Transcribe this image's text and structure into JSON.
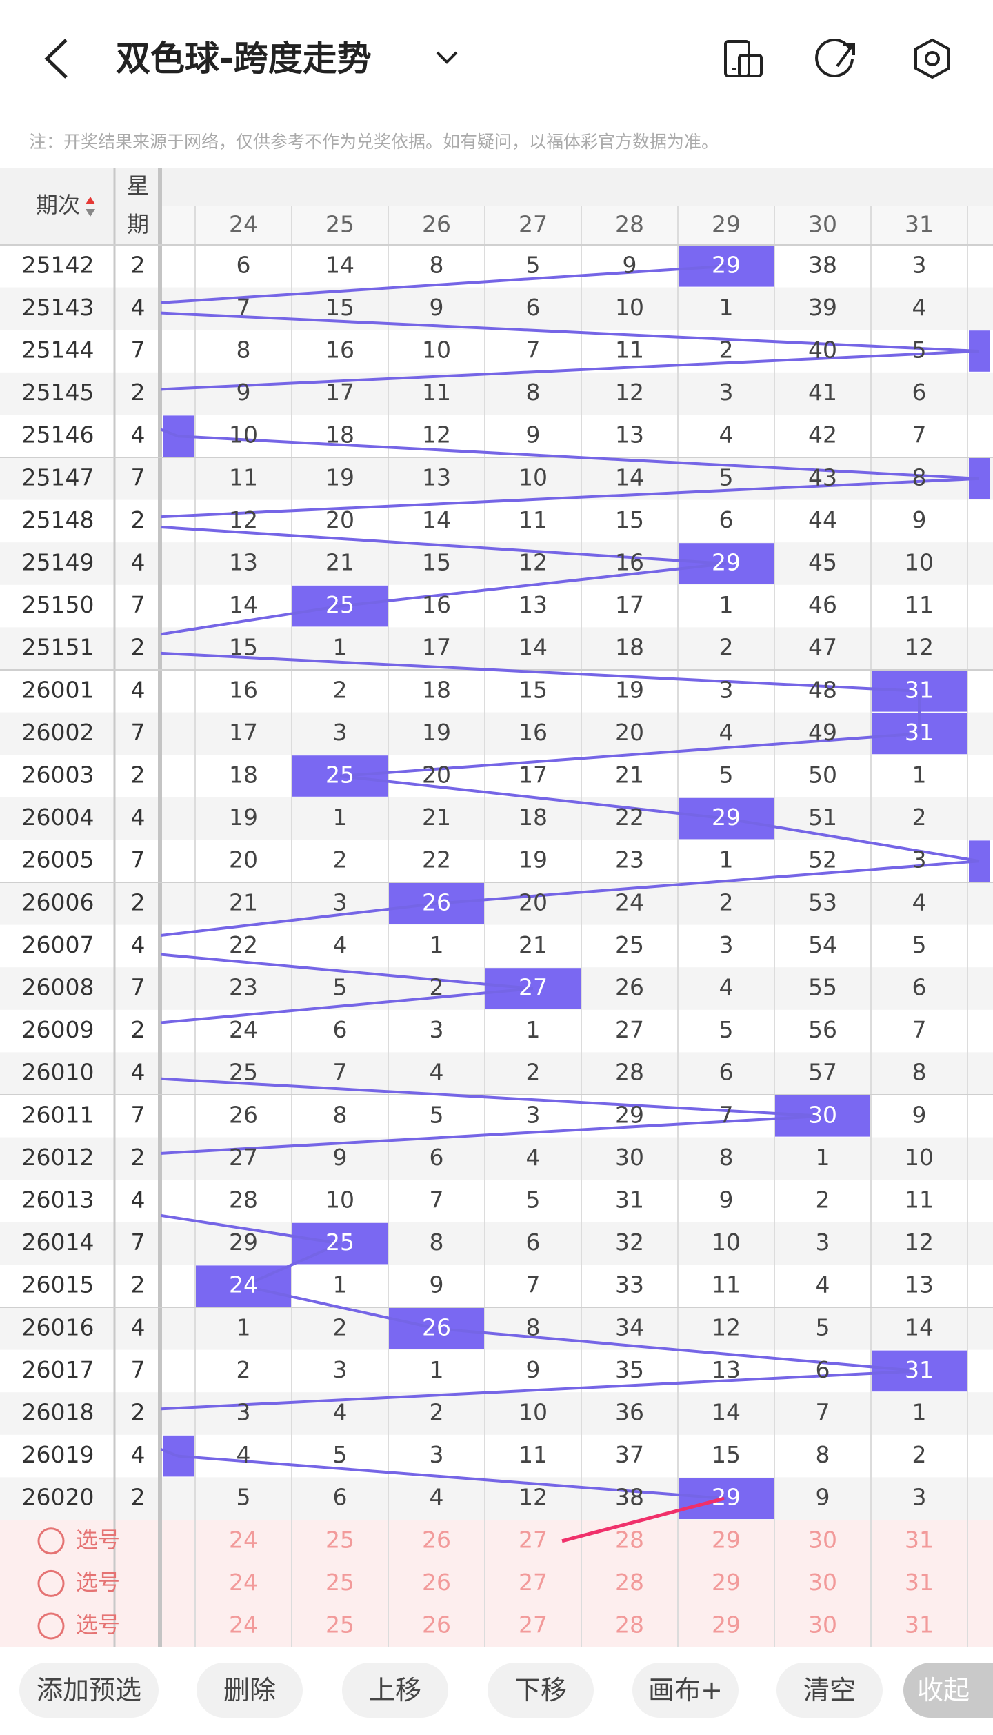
{
  "header": {
    "title": "双色球-跨度走势",
    "note": "注：开奖结果来源于网络，仅供参考不作为兑奖依据。如有疑问，以福体彩官方数据为准。"
  },
  "table": {
    "period_header": "期次",
    "week_header": [
      "星",
      "期"
    ],
    "columns": [
      24,
      25,
      26,
      27,
      28,
      29,
      30,
      31
    ],
    "rows": [
      {
        "period": "25142",
        "week": 2,
        "values": [
          6,
          14,
          8,
          5,
          9,
          29,
          38,
          3
        ],
        "hit": 5
      },
      {
        "period": "25143",
        "week": 4,
        "values": [
          7,
          15,
          9,
          6,
          10,
          1,
          39,
          4
        ],
        "hit": "left"
      },
      {
        "period": "25144",
        "week": 7,
        "values": [
          8,
          16,
          10,
          7,
          11,
          2,
          40,
          5
        ],
        "hit": "edge-right"
      },
      {
        "period": "25145",
        "week": 2,
        "values": [
          9,
          17,
          11,
          8,
          12,
          3,
          41,
          6
        ],
        "hit": "left"
      },
      {
        "period": "25146",
        "week": 4,
        "values": [
          10,
          18,
          12,
          9,
          13,
          4,
          42,
          7
        ],
        "hit": "edge-left"
      },
      {
        "period": "25147",
        "week": 7,
        "values": [
          11,
          19,
          13,
          10,
          14,
          5,
          43,
          8
        ],
        "hit": "edge-right"
      },
      {
        "period": "25148",
        "week": 2,
        "values": [
          12,
          20,
          14,
          11,
          15,
          6,
          44,
          9
        ],
        "hit": "left"
      },
      {
        "period": "25149",
        "week": 4,
        "values": [
          13,
          21,
          15,
          12,
          16,
          29,
          45,
          10
        ],
        "hit": 5
      },
      {
        "period": "25150",
        "week": 7,
        "values": [
          14,
          25,
          16,
          13,
          17,
          1,
          46,
          11
        ],
        "hit": 1
      },
      {
        "period": "25151",
        "week": 2,
        "values": [
          15,
          1,
          17,
          14,
          18,
          2,
          47,
          12
        ],
        "hit": "left"
      },
      {
        "period": "26001",
        "week": 4,
        "values": [
          16,
          2,
          18,
          15,
          19,
          3,
          48,
          31
        ],
        "hit": 7
      },
      {
        "period": "26002",
        "week": 7,
        "values": [
          17,
          3,
          19,
          16,
          20,
          4,
          49,
          31
        ],
        "hit": 7
      },
      {
        "period": "26003",
        "week": 2,
        "values": [
          18,
          25,
          20,
          17,
          21,
          5,
          50,
          1
        ],
        "hit": 1
      },
      {
        "period": "26004",
        "week": 4,
        "values": [
          19,
          1,
          21,
          18,
          22,
          29,
          51,
          2
        ],
        "hit": 5
      },
      {
        "period": "26005",
        "week": 7,
        "values": [
          20,
          2,
          22,
          19,
          23,
          1,
          52,
          3
        ],
        "hit": "edge-right"
      },
      {
        "period": "26006",
        "week": 2,
        "values": [
          21,
          3,
          26,
          20,
          24,
          2,
          53,
          4
        ],
        "hit": 2
      },
      {
        "period": "26007",
        "week": 4,
        "values": [
          22,
          4,
          1,
          21,
          25,
          3,
          54,
          5
        ],
        "hit": "left"
      },
      {
        "period": "26008",
        "week": 7,
        "values": [
          23,
          5,
          2,
          27,
          26,
          4,
          55,
          6
        ],
        "hit": 3
      },
      {
        "period": "26009",
        "week": 2,
        "values": [
          24,
          6,
          3,
          1,
          27,
          5,
          56,
          7
        ],
        "hit": "left"
      },
      {
        "period": "26010",
        "week": 4,
        "values": [
          25,
          7,
          4,
          2,
          28,
          6,
          57,
          8
        ],
        "hit": "left"
      },
      {
        "period": "26011",
        "week": 7,
        "values": [
          26,
          8,
          5,
          3,
          29,
          7,
          30,
          9
        ],
        "hit": 6
      },
      {
        "period": "26012",
        "week": 2,
        "values": [
          27,
          9,
          6,
          4,
          30,
          8,
          1,
          10
        ],
        "hit": "left"
      },
      {
        "period": "26013",
        "week": 4,
        "values": [
          28,
          10,
          7,
          5,
          31,
          9,
          2,
          11
        ],
        "hit": "left"
      },
      {
        "period": "26014",
        "week": 7,
        "values": [
          29,
          25,
          8,
          6,
          32,
          10,
          3,
          12
        ],
        "hit": 1
      },
      {
        "period": "26015",
        "week": 2,
        "values": [
          24,
          1,
          9,
          7,
          33,
          11,
          4,
          13
        ],
        "hit": 0
      },
      {
        "period": "26016",
        "week": 4,
        "values": [
          1,
          2,
          26,
          8,
          34,
          12,
          5,
          14
        ],
        "hit": 2
      },
      {
        "period": "26017",
        "week": 7,
        "values": [
          2,
          3,
          1,
          9,
          35,
          13,
          6,
          31
        ],
        "hit": 7
      },
      {
        "period": "26018",
        "week": 2,
        "values": [
          3,
          4,
          2,
          10,
          36,
          14,
          7,
          1
        ],
        "hit": "left"
      },
      {
        "period": "26019",
        "week": 4,
        "values": [
          4,
          5,
          3,
          11,
          37,
          15,
          8,
          2
        ],
        "hit": "edge-left"
      },
      {
        "period": "26020",
        "week": 2,
        "values": [
          5,
          6,
          4,
          12,
          38,
          29,
          9,
          3
        ],
        "hit": 5
      }
    ],
    "select_rows": [
      "选号",
      "选号",
      "选号"
    ]
  },
  "buttons": [
    "添加预选",
    "删除",
    "上移",
    "下移",
    "画布+",
    "清空",
    "收起"
  ]
}
